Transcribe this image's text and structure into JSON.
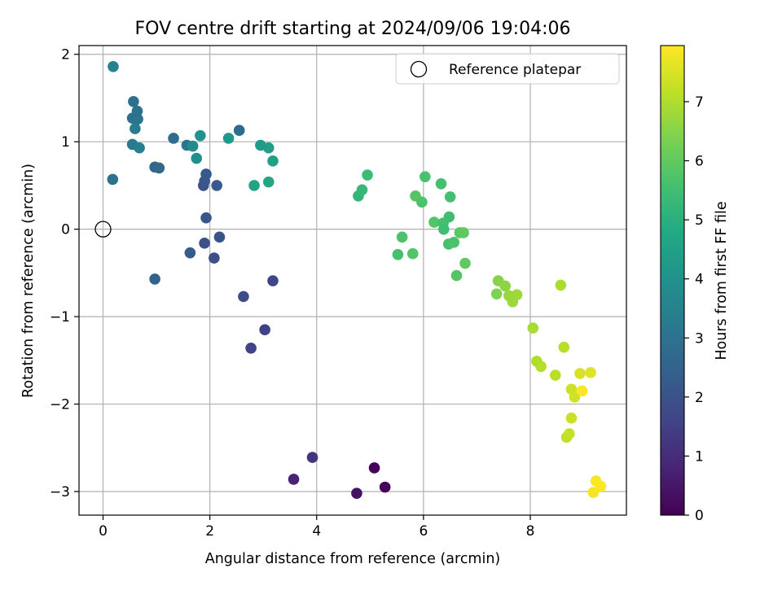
{
  "chart_data": {
    "type": "scatter",
    "title": "FOV centre drift starting at 2024/09/06 19:04:06",
    "xlabel": "Angular distance from reference (arcmin)",
    "ylabel": "Rotation from reference (arcmin)",
    "xlim": [
      -0.45,
      9.8
    ],
    "ylim": [
      -3.27,
      2.1
    ],
    "xticks": [
      0,
      2,
      4,
      6,
      8
    ],
    "xtick_labels": [
      "0",
      "2",
      "4",
      "6",
      "8"
    ],
    "yticks": [
      -3,
      -2,
      -1,
      0,
      1,
      2
    ],
    "ytick_labels": [
      "−3",
      "−2",
      "−1",
      "0",
      "1",
      "2"
    ],
    "grid": true,
    "legend": {
      "location": "upper right",
      "entries": [
        "Reference platepar"
      ]
    },
    "reference_marker": {
      "x": 0,
      "y": 0,
      "label": "Reference platepar",
      "marker": "open circle"
    },
    "colorbar": {
      "label": "Hours from first FF file",
      "colormap": "viridis",
      "range": [
        0,
        7.95
      ],
      "ticks": [
        0,
        1,
        2,
        3,
        4,
        5,
        6,
        7
      ],
      "tick_labels": [
        "0",
        "1",
        "2",
        "3",
        "4",
        "5",
        "6",
        "7"
      ]
    },
    "points": [
      {
        "x": 4.75,
        "y": -3.02,
        "hours": 0.35
      },
      {
        "x": 5.28,
        "y": -2.95,
        "hours": 0.1
      },
      {
        "x": 5.08,
        "y": -2.73,
        "hours": 0.05
      },
      {
        "x": 3.57,
        "y": -2.86,
        "hours": 0.75
      },
      {
        "x": 3.92,
        "y": -2.61,
        "hours": 1.2
      },
      {
        "x": 2.77,
        "y": -1.36,
        "hours": 1.6
      },
      {
        "x": 3.03,
        "y": -1.15,
        "hours": 1.55
      },
      {
        "x": 2.63,
        "y": -0.77,
        "hours": 1.8
      },
      {
        "x": 3.18,
        "y": -0.59,
        "hours": 1.65
      },
      {
        "x": 2.08,
        "y": -0.33,
        "hours": 1.9
      },
      {
        "x": 1.63,
        "y": -0.27,
        "hours": 2.3
      },
      {
        "x": 1.9,
        "y": -0.16,
        "hours": 1.95
      },
      {
        "x": 2.18,
        "y": -0.09,
        "hours": 2.05
      },
      {
        "x": 1.93,
        "y": 0.13,
        "hours": 2.1
      },
      {
        "x": 1.88,
        "y": 0.5,
        "hours": 2.0
      },
      {
        "x": 2.13,
        "y": 0.5,
        "hours": 2.25
      },
      {
        "x": 1.9,
        "y": 0.55,
        "hours": 2.15
      },
      {
        "x": 1.93,
        "y": 0.63,
        "hours": 2.2
      },
      {
        "x": 0.97,
        "y": -0.57,
        "hours": 2.5
      },
      {
        "x": 0.97,
        "y": 0.71,
        "hours": 2.6
      },
      {
        "x": 1.05,
        "y": 0.7,
        "hours": 2.7
      },
      {
        "x": 0.18,
        "y": 0.57,
        "hours": 3.0
      },
      {
        "x": 1.32,
        "y": 1.04,
        "hours": 2.8
      },
      {
        "x": 1.57,
        "y": 0.96,
        "hours": 3.1
      },
      {
        "x": 2.55,
        "y": 1.13,
        "hours": 2.75
      },
      {
        "x": 0.55,
        "y": 0.97,
        "hours": 3.2
      },
      {
        "x": 0.68,
        "y": 0.93,
        "hours": 3.4
      },
      {
        "x": 0.6,
        "y": 1.15,
        "hours": 3.3
      },
      {
        "x": 0.55,
        "y": 1.27,
        "hours": 3.0
      },
      {
        "x": 0.65,
        "y": 1.26,
        "hours": 3.1
      },
      {
        "x": 0.64,
        "y": 1.35,
        "hours": 3.0
      },
      {
        "x": 0.57,
        "y": 1.46,
        "hours": 2.9
      },
      {
        "x": 0.19,
        "y": 1.86,
        "hours": 3.5
      },
      {
        "x": 1.68,
        "y": 0.95,
        "hours": 3.8
      },
      {
        "x": 1.75,
        "y": 0.81,
        "hours": 3.9
      },
      {
        "x": 1.82,
        "y": 1.07,
        "hours": 4.0
      },
      {
        "x": 2.35,
        "y": 1.04,
        "hours": 4.2
      },
      {
        "x": 2.95,
        "y": 0.96,
        "hours": 4.3
      },
      {
        "x": 3.1,
        "y": 0.93,
        "hours": 4.4
      },
      {
        "x": 3.18,
        "y": 0.78,
        "hours": 4.5
      },
      {
        "x": 2.83,
        "y": 0.5,
        "hours": 4.6
      },
      {
        "x": 3.1,
        "y": 0.54,
        "hours": 4.7
      },
      {
        "x": 4.78,
        "y": 0.38,
        "hours": 5.2
      },
      {
        "x": 4.85,
        "y": 0.45,
        "hours": 5.3
      },
      {
        "x": 4.95,
        "y": 0.62,
        "hours": 5.4
      },
      {
        "x": 5.52,
        "y": -0.29,
        "hours": 5.6
      },
      {
        "x": 5.6,
        "y": -0.09,
        "hours": 5.7
      },
      {
        "x": 5.8,
        "y": -0.28,
        "hours": 5.75
      },
      {
        "x": 5.85,
        "y": 0.38,
        "hours": 5.8
      },
      {
        "x": 5.97,
        "y": 0.31,
        "hours": 5.7
      },
      {
        "x": 6.03,
        "y": 0.6,
        "hours": 5.65
      },
      {
        "x": 6.2,
        "y": 0.08,
        "hours": 5.8
      },
      {
        "x": 6.33,
        "y": 0.52,
        "hours": 5.55
      },
      {
        "x": 6.37,
        "y": 0.07,
        "hours": 5.6
      },
      {
        "x": 6.38,
        "y": 0.0,
        "hours": 5.5
      },
      {
        "x": 6.48,
        "y": 0.14,
        "hours": 5.5
      },
      {
        "x": 6.5,
        "y": 0.37,
        "hours": 5.55
      },
      {
        "x": 6.47,
        "y": -0.17,
        "hours": 5.6
      },
      {
        "x": 6.57,
        "y": -0.15,
        "hours": 5.7
      },
      {
        "x": 6.62,
        "y": -0.53,
        "hours": 5.8
      },
      {
        "x": 6.68,
        "y": -0.04,
        "hours": 5.9
      },
      {
        "x": 6.75,
        "y": -0.04,
        "hours": 5.95
      },
      {
        "x": 6.78,
        "y": -0.39,
        "hours": 6.0
      },
      {
        "x": 7.37,
        "y": -0.74,
        "hours": 6.4
      },
      {
        "x": 7.4,
        "y": -0.59,
        "hours": 6.5
      },
      {
        "x": 7.53,
        "y": -0.65,
        "hours": 6.6
      },
      {
        "x": 7.6,
        "y": -0.76,
        "hours": 6.7
      },
      {
        "x": 7.67,
        "y": -0.83,
        "hours": 6.75
      },
      {
        "x": 7.75,
        "y": -0.75,
        "hours": 6.8
      },
      {
        "x": 8.05,
        "y": -1.13,
        "hours": 6.9
      },
      {
        "x": 8.12,
        "y": -1.51,
        "hours": 7.0
      },
      {
        "x": 8.2,
        "y": -1.57,
        "hours": 7.05
      },
      {
        "x": 8.47,
        "y": -1.67,
        "hours": 7.1
      },
      {
        "x": 8.57,
        "y": -0.64,
        "hours": 6.95
      },
      {
        "x": 8.63,
        "y": -1.35,
        "hours": 7.1
      },
      {
        "x": 8.68,
        "y": -2.38,
        "hours": 7.2
      },
      {
        "x": 8.73,
        "y": -2.34,
        "hours": 7.25
      },
      {
        "x": 8.77,
        "y": -2.16,
        "hours": 7.3
      },
      {
        "x": 8.77,
        "y": -1.83,
        "hours": 7.35
      },
      {
        "x": 8.83,
        "y": -1.92,
        "hours": 7.4
      },
      {
        "x": 8.93,
        "y": -1.65,
        "hours": 7.5
      },
      {
        "x": 9.13,
        "y": -1.64,
        "hours": 7.55
      },
      {
        "x": 8.97,
        "y": -1.85,
        "hours": 7.9
      },
      {
        "x": 9.18,
        "y": -3.01,
        "hours": 7.85
      },
      {
        "x": 9.23,
        "y": -2.88,
        "hours": 7.9
      },
      {
        "x": 9.32,
        "y": -2.94,
        "hours": 7.95
      }
    ]
  }
}
